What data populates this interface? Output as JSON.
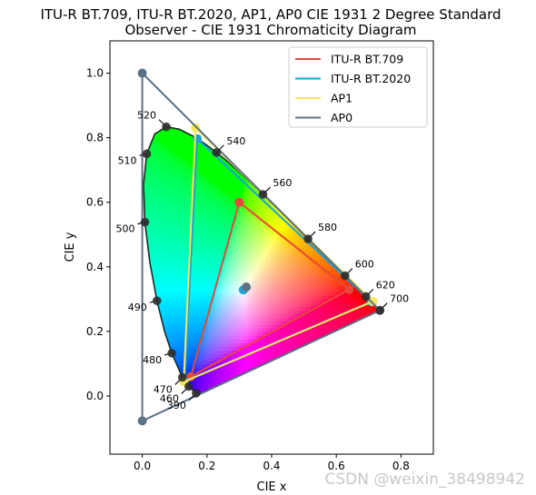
{
  "chart_data": {
    "type": "scatter",
    "title_lines": [
      "ITU-R BT.709, ITU-R BT.2020, AP1, AP0 CIE 1931 2 Degree Standard",
      "Observer - CIE 1931 Chromaticity Diagram"
    ],
    "xlabel": "CIE x",
    "ylabel": "CIE y",
    "xlim": [
      -0.1,
      0.9
    ],
    "ylim": [
      -0.18,
      1.1
    ],
    "xticks": [
      0.0,
      0.2,
      0.4,
      0.6,
      0.8
    ],
    "xtick_labels": [
      "0.0",
      "0.2",
      "0.4",
      "0.6",
      "0.8"
    ],
    "yticks": [
      0.0,
      0.2,
      0.4,
      0.6,
      0.8,
      1.0
    ],
    "ytick_labels": [
      "0.0",
      "0.2",
      "0.4",
      "0.6",
      "0.8",
      "1.0"
    ],
    "grid": false,
    "legend_position": "top-right",
    "spectral_locus": [
      [
        0.1741,
        0.005
      ],
      [
        0.1738,
        0.0049
      ],
      [
        0.1733,
        0.0048
      ],
      [
        0.1726,
        0.0048
      ],
      [
        0.1714,
        0.0051
      ],
      [
        0.1689,
        0.0069
      ],
      [
        0.1644,
        0.0109
      ],
      [
        0.1566,
        0.0177
      ],
      [
        0.144,
        0.0297
      ],
      [
        0.1241,
        0.0578
      ],
      [
        0.0913,
        0.1327
      ],
      [
        0.0687,
        0.2007
      ],
      [
        0.0454,
        0.295
      ],
      [
        0.0235,
        0.4127
      ],
      [
        0.0082,
        0.5384
      ],
      [
        0.0039,
        0.6548
      ],
      [
        0.0139,
        0.7502
      ],
      [
        0.0389,
        0.812
      ],
      [
        0.0743,
        0.8338
      ],
      [
        0.1142,
        0.8262
      ],
      [
        0.1547,
        0.8059
      ],
      [
        0.1929,
        0.7816
      ],
      [
        0.2296,
        0.7543
      ],
      [
        0.2658,
        0.7243
      ],
      [
        0.3016,
        0.6923
      ],
      [
        0.3373,
        0.6589
      ],
      [
        0.3731,
        0.6245
      ],
      [
        0.4087,
        0.5896
      ],
      [
        0.4441,
        0.5547
      ],
      [
        0.4788,
        0.5202
      ],
      [
        0.5125,
        0.4866
      ],
      [
        0.5448,
        0.4544
      ],
      [
        0.5752,
        0.4242
      ],
      [
        0.6029,
        0.3965
      ],
      [
        0.627,
        0.3725
      ],
      [
        0.6482,
        0.3514
      ],
      [
        0.6658,
        0.334
      ],
      [
        0.6801,
        0.3197
      ],
      [
        0.6915,
        0.3083
      ],
      [
        0.7006,
        0.2993
      ],
      [
        0.7079,
        0.292
      ],
      [
        0.714,
        0.2859
      ],
      [
        0.719,
        0.2809
      ],
      [
        0.723,
        0.277
      ],
      [
        0.726,
        0.274
      ],
      [
        0.7283,
        0.2717
      ],
      [
        0.73,
        0.27
      ],
      [
        0.7311,
        0.2689
      ],
      [
        0.732,
        0.268
      ],
      [
        0.7327,
        0.2673
      ],
      [
        0.7334,
        0.2666
      ],
      [
        0.734,
        0.266
      ],
      [
        0.7344,
        0.2656
      ],
      [
        0.7346,
        0.2654
      ],
      [
        0.7347,
        0.2653
      ]
    ],
    "wavelength_labels": [
      {
        "label": "390",
        "x": 0.1666,
        "y": 0.0089,
        "dir": "sw"
      },
      {
        "label": "460",
        "x": 0.144,
        "y": 0.0297,
        "dir": "sw"
      },
      {
        "label": "470",
        "x": 0.1241,
        "y": 0.0578,
        "dir": "sw"
      },
      {
        "label": "480",
        "x": 0.0913,
        "y": 0.1327,
        "dir": "w"
      },
      {
        "label": "490",
        "x": 0.0454,
        "y": 0.295,
        "dir": "w"
      },
      {
        "label": "500",
        "x": 0.0082,
        "y": 0.5384,
        "dir": "w"
      },
      {
        "label": "510",
        "x": 0.0139,
        "y": 0.7502,
        "dir": "w"
      },
      {
        "label": "520",
        "x": 0.0743,
        "y": 0.8338,
        "dir": "nw"
      },
      {
        "label": "540",
        "x": 0.2296,
        "y": 0.7543,
        "dir": "ne"
      },
      {
        "label": "560",
        "x": 0.3731,
        "y": 0.6245,
        "dir": "ne"
      },
      {
        "label": "580",
        "x": 0.5125,
        "y": 0.4866,
        "dir": "ne"
      },
      {
        "label": "600",
        "x": 0.627,
        "y": 0.3725,
        "dir": "ne"
      },
      {
        "label": "620",
        "x": 0.6915,
        "y": 0.3083,
        "dir": "ne"
      },
      {
        "label": "700",
        "x": 0.7347,
        "y": 0.2653,
        "dir": "ne"
      }
    ],
    "series": [
      {
        "name": "ITU-R BT.709",
        "color": "#e8483a",
        "points": [
          [
            0.64,
            0.33
          ],
          [
            0.3,
            0.6
          ],
          [
            0.15,
            0.06
          ]
        ],
        "whitepoint": [
          0.3127,
          0.329
        ]
      },
      {
        "name": "ITU-R BT.2020",
        "color": "#1ba3d6",
        "points": [
          [
            0.708,
            0.292
          ],
          [
            0.17,
            0.797
          ],
          [
            0.131,
            0.046
          ]
        ],
        "whitepoint": [
          0.3127,
          0.329
        ]
      },
      {
        "name": "AP1",
        "color": "#f6e85a",
        "points": [
          [
            0.713,
            0.293
          ],
          [
            0.165,
            0.83
          ],
          [
            0.128,
            0.044
          ]
        ],
        "whitepoint": [
          0.32168,
          0.33767
        ]
      },
      {
        "name": "AP0",
        "color": "#5b7185",
        "points": [
          [
            0.7347,
            0.2653
          ],
          [
            0.0,
            1.0
          ],
          [
            0.0001,
            -0.077
          ]
        ],
        "whitepoint": [
          0.32168,
          0.33767
        ]
      }
    ]
  },
  "watermark": "CSDN @weixin_38498942"
}
